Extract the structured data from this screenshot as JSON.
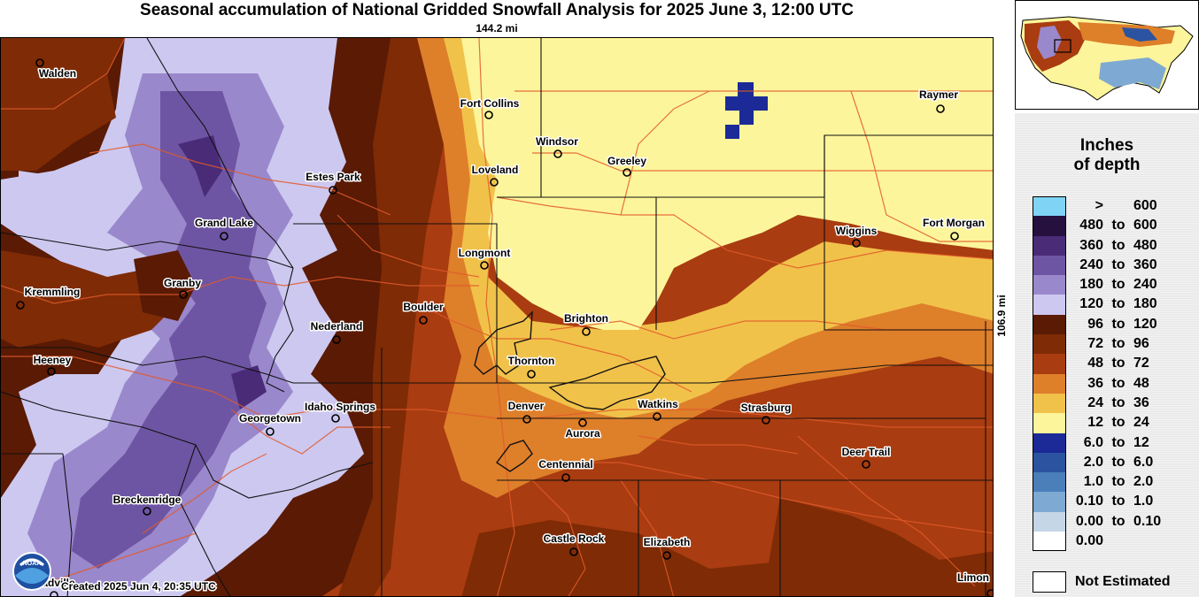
{
  "title": "Seasonal accumulation of National Gridded Snowfall Analysis for 2025 June 3, 12:00 UTC",
  "scale_horizontal": "144.2 mi",
  "scale_vertical": "106.9 mi",
  "created": "Created 2025 Jun 4, 20:35 UTC",
  "logo_text": "NOAA",
  "colors": {
    "gt600": "#7fd4f5",
    "480_600": "#26103d",
    "360_480": "#4a2b78",
    "240_360": "#6e55a3",
    "180_240": "#9a88cc",
    "120_180": "#cdc8f0",
    "96_120": "#5a1a04",
    "72_96": "#7e2b06",
    "48_72": "#a93c10",
    "36_48": "#de7f2a",
    "24_36": "#f1c24a",
    "12_24": "#fdf59b",
    "6_12": "#1b2a96",
    "2_6": "#2c53a0",
    "1_2": "#4a7fba",
    "0.1_1": "#7ea9d2",
    "0_0.1": "#c5d6e6",
    "zero": "#ffffff",
    "road": "#e15a2a",
    "county": "#000000"
  },
  "legend": {
    "title_line1": "Inches",
    "title_line2": "of depth",
    "to_word": "to",
    "rows": [
      {
        "low": ">",
        "high": "600",
        "color": "#7fd4f5"
      },
      {
        "low": "480",
        "high": "600",
        "color": "#26103d"
      },
      {
        "low": "360",
        "high": "480",
        "color": "#4a2b78"
      },
      {
        "low": "240",
        "high": "360",
        "color": "#6e55a3"
      },
      {
        "low": "180",
        "high": "240",
        "color": "#9a88cc"
      },
      {
        "low": "120",
        "high": "180",
        "color": "#cdc8f0"
      },
      {
        "low": "96",
        "high": "120",
        "color": "#5a1a04"
      },
      {
        "low": "72",
        "high": "96",
        "color": "#7e2b06"
      },
      {
        "low": "48",
        "high": "72",
        "color": "#a93c10"
      },
      {
        "low": "36",
        "high": "48",
        "color": "#de7f2a"
      },
      {
        "low": "24",
        "high": "36",
        "color": "#f1c24a"
      },
      {
        "low": "12",
        "high": "24",
        "color": "#fdf59b"
      },
      {
        "low": "6.0",
        "high": "12",
        "color": "#1b2a96"
      },
      {
        "low": "2.0",
        "high": "6.0",
        "color": "#2c53a0"
      },
      {
        "low": "1.0",
        "high": "2.0",
        "color": "#4a7fba"
      },
      {
        "low": "0.10",
        "high": "1.0",
        "color": "#7ea9d2"
      },
      {
        "low": "0.00",
        "high": "0.10",
        "color": "#c5d6e6"
      },
      {
        "low": "0.00",
        "high": "",
        "color": "#ffffff"
      }
    ],
    "not_estimated": "Not Estimated"
  },
  "cities": [
    {
      "name": "Walden"
    },
    {
      "name": "Fort Collins"
    },
    {
      "name": "Raymer"
    },
    {
      "name": "Windsor"
    },
    {
      "name": "Greeley"
    },
    {
      "name": "Loveland"
    },
    {
      "name": "Estes Park"
    },
    {
      "name": "Grand Lake"
    },
    {
      "name": "Wiggins"
    },
    {
      "name": "Fort Morgan"
    },
    {
      "name": "Longmont"
    },
    {
      "name": "Kremmling"
    },
    {
      "name": "Granby"
    },
    {
      "name": "Boulder"
    },
    {
      "name": "Brighton"
    },
    {
      "name": "Nederland"
    },
    {
      "name": "Heeney"
    },
    {
      "name": "Thornton"
    },
    {
      "name": "Idaho Springs"
    },
    {
      "name": "Denver"
    },
    {
      "name": "Watkins"
    },
    {
      "name": "Strasburg"
    },
    {
      "name": "Georgetown"
    },
    {
      "name": "Aurora"
    },
    {
      "name": "Deer Trail"
    },
    {
      "name": "Centennial"
    },
    {
      "name": "Breckenridge"
    },
    {
      "name": "Castle Rock"
    },
    {
      "name": "Elizabeth"
    },
    {
      "name": "Leadville"
    },
    {
      "name": "Limon"
    }
  ]
}
